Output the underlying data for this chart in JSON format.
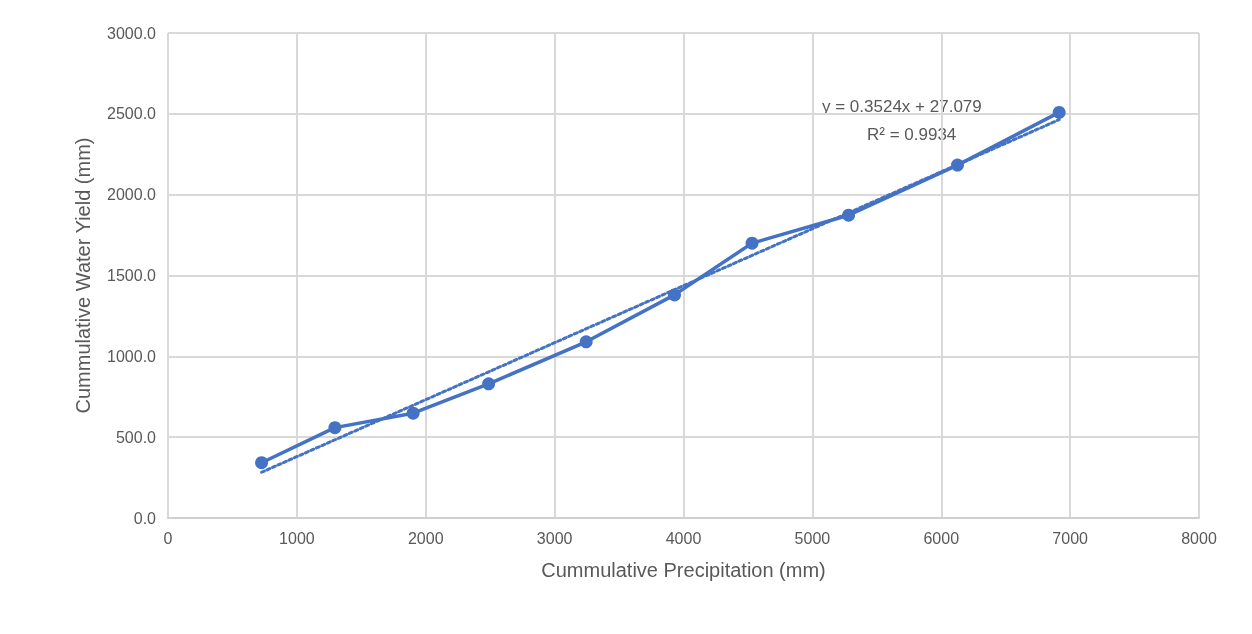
{
  "chart_data": {
    "type": "line",
    "xlabel": "Cummulative Precipitation (mm)",
    "ylabel": "Cummulative Water Yield (mm)",
    "xlim": [
      0,
      8000
    ],
    "xticks": [
      0,
      1000,
      2000,
      3000,
      4000,
      5000,
      6000,
      7000,
      8000
    ],
    "ylim": [
      0,
      3000
    ],
    "yticks": [
      {
        "value": 0,
        "label": "0.0"
      },
      {
        "value": 500,
        "label": "500.0"
      },
      {
        "value": 1000,
        "label": "1000.0"
      },
      {
        "value": 1500,
        "label": "1500.0"
      },
      {
        "value": 2000,
        "label": "2000.0"
      },
      {
        "value": 2500,
        "label": "2500.0"
      },
      {
        "value": 3000,
        "label": "3000.0"
      }
    ],
    "grid": true,
    "series": [
      {
        "color": "#4472c4",
        "marker": "circle",
        "line_style": "solid",
        "x": [
          726,
          1295,
          1902,
          2488,
          3245,
          3930,
          4532,
          5281,
          6126,
          6915
        ],
        "values": [
          342,
          559,
          648,
          830,
          1090,
          1380,
          1700,
          1873,
          2183,
          2509
        ]
      },
      {
        "color": "#4472c4",
        "marker": "none",
        "line_style": "dotted",
        "x": [
          726,
          6915
        ],
        "values": [
          283,
          2464
        ]
      }
    ],
    "annotations": [
      "y = 0.3524x + 27.079",
      "R² = 0.9934"
    ]
  }
}
